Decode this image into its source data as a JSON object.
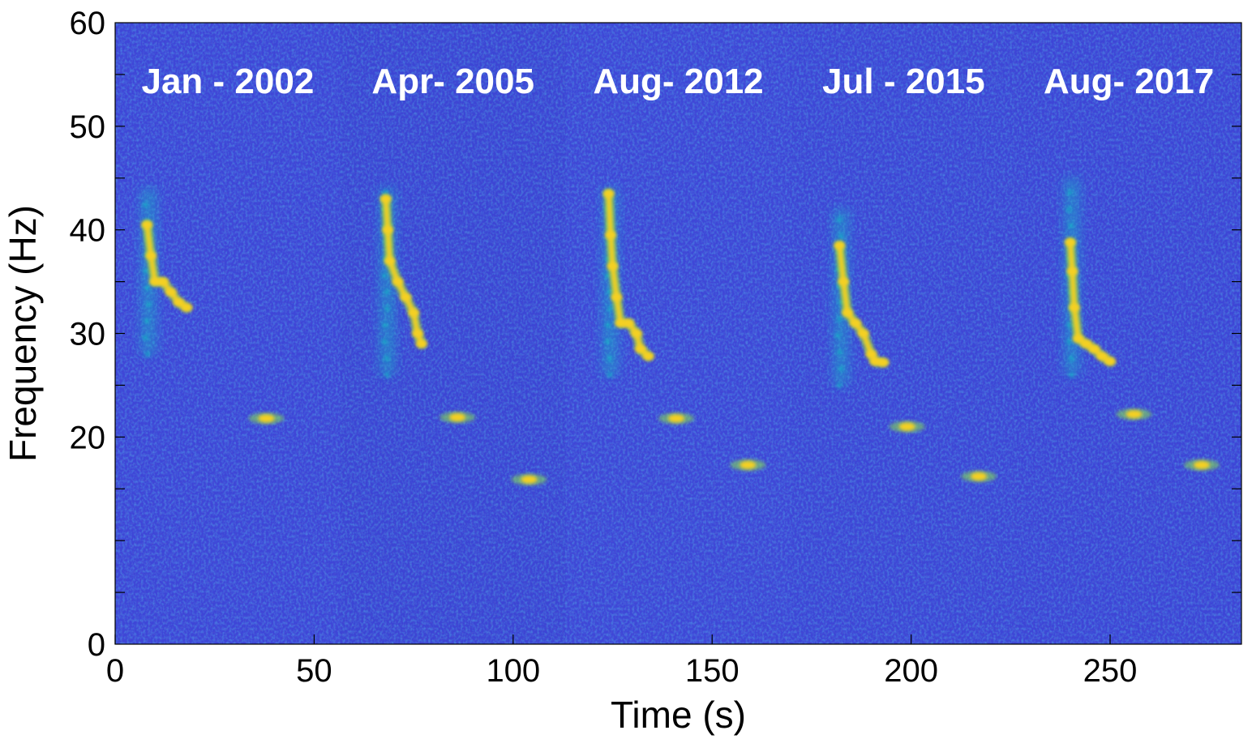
{
  "chart_data": {
    "type": "heatmap",
    "subtype": "spectrogram",
    "title": "",
    "xlabel": "Time (s)",
    "ylabel": "Frequency (Hz)",
    "xlim": [
      0,
      283
    ],
    "ylim": [
      0,
      60
    ],
    "x_ticks": [
      0,
      50,
      100,
      150,
      200,
      250
    ],
    "y_ticks": [
      0,
      20,
      30,
      40,
      50,
      60
    ],
    "grid": false,
    "colormap": "parula",
    "colors": {
      "background": "#3f47d8",
      "low": "#2a2aa8",
      "mid": "#15b3c6",
      "high": "#f5d020"
    },
    "segments": [
      {
        "label": "Jan - 2002",
        "t_start": 0,
        "t_end": 56.6
      },
      {
        "label": "Apr- 2005",
        "t_start": 56.6,
        "t_end": 113.2
      },
      {
        "label": "Aug- 2012",
        "t_start": 113.2,
        "t_end": 169.8
      },
      {
        "label": "Jul - 2015",
        "t_start": 169.8,
        "t_end": 226.4
      },
      {
        "label": "Aug- 2017",
        "t_start": 226.4,
        "t_end": 283
      }
    ],
    "calls": [
      {
        "segment": "Jan - 2002",
        "main_start": 8,
        "trace": [
          [
            8,
            40.5
          ],
          [
            9,
            37.5
          ],
          [
            10,
            35
          ],
          [
            12,
            35
          ],
          [
            14,
            34
          ],
          [
            16,
            33
          ],
          [
            18,
            32.5
          ]
        ],
        "harmonic_range": [
          28,
          44
        ],
        "unit_b": {
          "t": 38,
          "f": 21.8
        },
        "unit_c": null
      },
      {
        "segment": "Apr- 2005",
        "main_start": 68,
        "trace": [
          [
            68,
            43
          ],
          [
            68.5,
            40
          ],
          [
            69,
            37
          ],
          [
            71,
            35
          ],
          [
            73,
            33.5
          ],
          [
            75,
            32
          ],
          [
            76,
            30
          ],
          [
            77,
            29
          ]
        ],
        "harmonic_range": [
          26,
          44
        ],
        "unit_b": {
          "t": 86,
          "f": 21.9
        },
        "unit_c": {
          "t": 104,
          "f": 15.9
        }
      },
      {
        "segment": "Aug- 2012",
        "main_start": 124,
        "trace": [
          [
            124,
            43.5
          ],
          [
            124.5,
            39.5
          ],
          [
            125,
            36.5
          ],
          [
            126,
            33.5
          ],
          [
            127,
            31
          ],
          [
            129,
            31
          ],
          [
            131,
            30
          ],
          [
            132,
            28.5
          ],
          [
            134,
            27.8
          ]
        ],
        "harmonic_range": [
          26,
          44
        ],
        "unit_b": {
          "t": 141,
          "f": 21.8
        },
        "unit_c": {
          "t": 159,
          "f": 17.3
        }
      },
      {
        "segment": "Jul - 2015",
        "main_start": 182,
        "trace": [
          [
            182,
            38.5
          ],
          [
            183,
            35
          ],
          [
            184,
            32
          ],
          [
            186,
            31
          ],
          [
            188,
            30
          ],
          [
            190,
            28
          ],
          [
            191,
            27.3
          ],
          [
            193,
            27.2
          ]
        ],
        "harmonic_range": [
          25,
          42
        ],
        "unit_b": {
          "t": 199,
          "f": 21
        },
        "unit_c": {
          "t": 217,
          "f": 16.2
        }
      },
      {
        "segment": "Aug- 2017",
        "main_start": 240,
        "trace": [
          [
            240,
            38.8
          ],
          [
            240.5,
            36
          ],
          [
            241,
            32.5
          ],
          [
            242,
            29.5
          ],
          [
            244,
            29
          ],
          [
            246,
            28.5
          ],
          [
            248,
            27.8
          ],
          [
            250,
            27.3
          ]
        ],
        "harmonic_range": [
          26,
          45
        ],
        "unit_b": {
          "t": 256,
          "f": 22.2
        },
        "unit_c": {
          "t": 273,
          "f": 17.3
        }
      }
    ]
  }
}
